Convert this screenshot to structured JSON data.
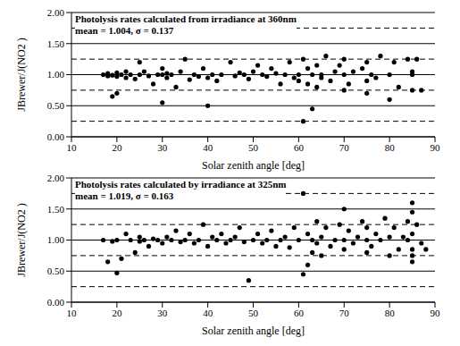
{
  "chart_data": [
    {
      "type": "scatter",
      "annotations": [
        "Photolysis rates calculated from irradiance at 360nm",
        "mean = 1.004, σ = 0.137"
      ],
      "xlabel": "Solar zenith angle [deg]",
      "ylabel": "JBrewer/J(NO2 )",
      "xlim": [
        10,
        90
      ],
      "xticks": [
        10,
        20,
        30,
        40,
        50,
        60,
        70,
        80,
        90
      ],
      "ylim": [
        0,
        2
      ],
      "yticks": [
        {
          "value": 0,
          "label": "0.00"
        },
        {
          "value": 0.5,
          "label": "0.50"
        },
        {
          "value": 1,
          "label": "1.00"
        },
        {
          "value": 1.5,
          "label": "1.50"
        },
        {
          "value": 2,
          "label": "2.00"
        }
      ],
      "grid": true,
      "reference_lines": [
        0.25,
        0.75,
        1.25,
        1.75
      ],
      "series": [
        {
          "color": "#000000",
          "marker": "circle",
          "x": [
            17,
            18,
            18,
            19,
            19,
            20,
            20,
            20,
            21,
            22,
            22,
            23,
            24,
            25,
            25,
            26,
            27,
            28,
            29,
            30,
            30,
            30,
            31,
            31,
            32,
            33,
            34,
            35,
            36,
            37,
            38,
            39,
            40,
            40,
            41,
            42,
            43,
            45,
            46,
            47,
            48,
            49,
            50,
            51,
            52,
            53,
            54,
            55,
            56,
            57,
            58,
            59,
            60,
            60,
            61,
            61,
            62,
            62,
            63,
            63,
            64,
            64,
            65,
            65,
            66,
            67,
            68,
            69,
            70,
            70,
            70,
            71,
            72,
            74,
            75,
            75,
            75,
            76,
            77,
            78,
            80,
            80,
            81,
            82,
            84,
            85,
            85,
            86,
            87,
            85
          ],
          "values": [
            1.0,
            1.02,
            0.98,
            0.99,
            0.65,
            1.03,
            0.7,
            0.97,
            1.0,
            1.05,
            0.95,
            1.0,
            0.93,
            1.2,
            1.0,
            1.05,
            0.98,
            0.85,
            1.0,
            1.1,
            1.0,
            0.55,
            0.95,
            1.02,
            1.0,
            0.8,
            1.05,
            1.25,
            0.92,
            1.0,
            0.97,
            1.1,
            0.5,
            0.95,
            1.0,
            0.9,
            1.0,
            1.2,
            0.98,
            1.03,
            1.0,
            0.93,
            1.05,
            1.15,
            1.0,
            0.97,
            1.1,
            1.02,
            0.85,
            1.0,
            1.2,
            0.95,
            1.0,
            0.9,
            1.25,
            0.25,
            0.85,
            1.1,
            1.0,
            0.45,
            1.15,
            0.8,
            1.0,
            0.95,
            1.3,
            0.9,
            1.05,
            1.15,
            1.0,
            0.75,
            1.25,
            0.85,
            1.05,
            1.1,
            0.9,
            1.2,
            0.7,
            1.0,
            0.95,
            1.3,
            1.0,
            0.6,
            1.2,
            0.8,
            1.25,
            0.75,
            1.05,
            1.25,
            0.75,
            1.0
          ]
        }
      ]
    },
    {
      "type": "scatter",
      "annotations": [
        "Photolysis rates calculated by irradiance at 325nm",
        "mean = 1.019, σ = 0.163"
      ],
      "xlabel": "Solar zenith angle [deg]",
      "ylabel": "JBrewer/J(NO2 )",
      "xlim": [
        10,
        90
      ],
      "xticks": [
        10,
        20,
        30,
        40,
        50,
        60,
        70,
        80,
        90
      ],
      "ylim": [
        0,
        2
      ],
      "yticks": [
        {
          "value": 0,
          "label": "0.00"
        },
        {
          "value": 0.5,
          "label": "0.50"
        },
        {
          "value": 1,
          "label": "1.00"
        },
        {
          "value": 1.5,
          "label": "1.50"
        },
        {
          "value": 2,
          "label": "2.00"
        }
      ],
      "grid": true,
      "reference_lines": [
        0.25,
        0.75,
        1.25,
        1.75
      ],
      "series": [
        {
          "color": "#000000",
          "marker": "circle",
          "x": [
            17,
            18,
            19,
            20,
            20,
            21,
            22,
            23,
            24,
            25,
            25,
            26,
            27,
            28,
            29,
            30,
            31,
            32,
            33,
            34,
            35,
            36,
            37,
            38,
            39,
            40,
            41,
            42,
            43,
            44,
            45,
            46,
            47,
            48,
            49,
            50,
            51,
            52,
            53,
            54,
            55,
            56,
            57,
            58,
            59,
            60,
            61,
            61,
            62,
            62,
            63,
            63,
            64,
            64,
            65,
            65,
            66,
            67,
            68,
            69,
            70,
            70,
            70,
            71,
            72,
            73,
            74,
            75,
            75,
            75,
            76,
            77,
            78,
            79,
            80,
            80,
            81,
            82,
            84,
            85,
            85,
            85,
            85,
            85,
            86,
            87,
            88,
            85,
            84,
            83
          ],
          "values": [
            1.0,
            0.65,
            0.98,
            0.47,
            1.0,
            0.7,
            1.1,
            1.0,
            0.8,
            1.05,
            0.98,
            1.0,
            0.9,
            1.02,
            1.0,
            0.95,
            1.05,
            1.0,
            1.15,
            0.97,
            1.0,
            1.1,
            0.95,
            1.0,
            1.25,
            0.9,
            1.05,
            1.0,
            1.1,
            0.95,
            1.0,
            1.05,
            1.2,
            0.97,
            0.35,
            1.0,
            1.1,
            0.95,
            1.0,
            1.15,
            0.9,
            1.0,
            1.05,
            0.88,
            1.2,
            1.0,
            1.75,
            0.45,
            0.6,
            1.1,
            1.0,
            0.8,
            1.3,
            0.95,
            1.05,
            0.75,
            1.2,
            0.9,
            1.0,
            1.25,
            1.5,
            0.85,
            1.0,
            1.15,
            0.95,
            1.05,
            1.3,
            0.8,
            1.0,
            1.2,
            0.9,
            1.1,
            1.0,
            1.35,
            0.75,
            1.05,
            1.2,
            0.85,
            1.0,
            1.6,
            1.45,
            0.85,
            1.1,
            0.65,
            1.25,
            0.95,
            0.85,
            0.75,
            1.3,
            1.05
          ]
        }
      ]
    }
  ]
}
